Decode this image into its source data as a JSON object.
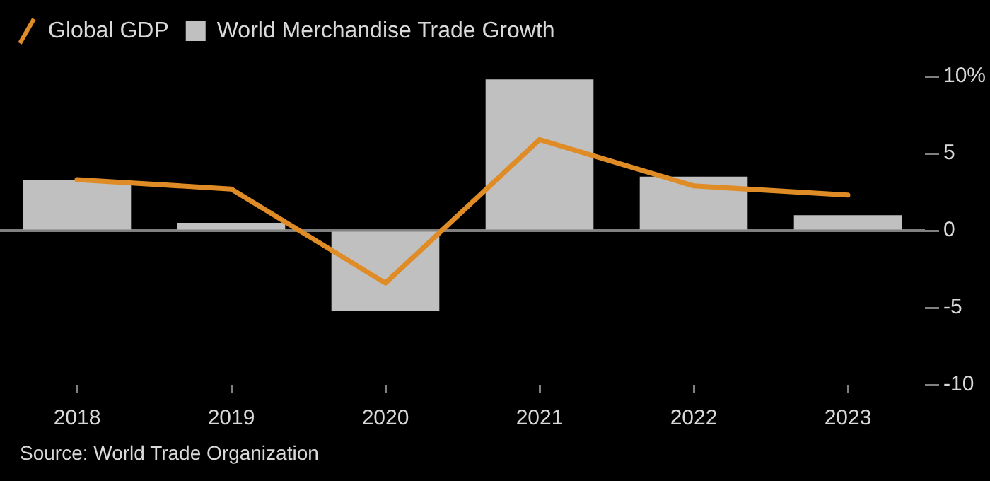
{
  "chart_data": {
    "type": "bar",
    "categories": [
      "2018",
      "2019",
      "2020",
      "2021",
      "2022",
      "2023"
    ],
    "series": [
      {
        "name": "Global GDP",
        "type": "line",
        "color": "#e08c26",
        "values": [
          3.3,
          2.7,
          -3.4,
          5.9,
          2.9,
          2.3
        ]
      },
      {
        "name": "World Merchandise Trade Growth",
        "color": "#c0c0c0",
        "values": [
          3.3,
          0.5,
          -5.2,
          9.8,
          3.5,
          1.0
        ]
      }
    ],
    "ylim": [
      -10,
      10
    ],
    "yticks": [
      {
        "value": 10,
        "label": "10%"
      },
      5,
      0,
      -5,
      -10
    ],
    "grid": false,
    "legend": "top left",
    "marker": "none",
    "ref_lines": [
      {
        "axis": "y",
        "value": 0,
        "color": "#808080"
      }
    ],
    "annotations": [
      "Source: World Trade Organization"
    ]
  }
}
